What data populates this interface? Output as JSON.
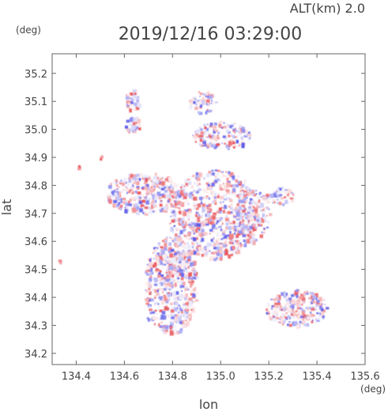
{
  "header": {
    "altitude_label": "ALT(km) 2.0",
    "timestamp": "2019/12/16 03:29:00"
  },
  "chart_data": {
    "type": "heatmap",
    "title": "2019/12/16 03:29:00",
    "xlabel": "lon",
    "ylabel": "lat",
    "x_unit": "(deg)",
    "y_unit": "(deg)",
    "xlim": [
      134.3,
      135.6
    ],
    "ylim": [
      34.16,
      35.27
    ],
    "x_ticks": [
      "134.4",
      "134.6",
      "134.8",
      "135.0",
      "135.2",
      "135.4",
      "135.6"
    ],
    "x_tick_values": [
      134.4,
      134.6,
      134.8,
      135.0,
      135.2,
      135.4,
      135.6
    ],
    "y_ticks": [
      "34.2",
      "34.3",
      "34.4",
      "34.5",
      "34.6",
      "34.7",
      "34.8",
      "34.9",
      "35.0",
      "35.1",
      "35.2"
    ],
    "y_tick_values": [
      34.2,
      34.3,
      34.4,
      34.5,
      34.6,
      34.7,
      34.8,
      34.9,
      35.0,
      35.1,
      35.2
    ],
    "colors": {
      "positive": "#e8555a",
      "negative": "#5a5ae8",
      "frame": "#666666"
    },
    "echo_regions": [
      {
        "lon": [
          134.68,
          134.9
        ],
        "lat": [
          34.27,
          34.62
        ],
        "strength": 0.9
      },
      {
        "lon": [
          134.76,
          134.88
        ],
        "lat": [
          34.5,
          34.57
        ],
        "strength": 1.0
      },
      {
        "lon": [
          134.52,
          134.84
        ],
        "lat": [
          34.7,
          34.85
        ],
        "strength": 0.9
      },
      {
        "lon": [
          134.78,
          135.16
        ],
        "lat": [
          34.54,
          34.86
        ],
        "strength": 0.8
      },
      {
        "lon": [
          135.05,
          135.2
        ],
        "lat": [
          34.6,
          34.8
        ],
        "strength": 0.6
      },
      {
        "lon": [
          134.88,
          135.12
        ],
        "lat": [
          34.93,
          35.03
        ],
        "strength": 0.8
      },
      {
        "lon": [
          134.86,
          134.98
        ],
        "lat": [
          35.06,
          35.14
        ],
        "strength": 0.5
      },
      {
        "lon": [
          134.6,
          134.66
        ],
        "lat": [
          34.99,
          35.05
        ],
        "strength": 0.6
      },
      {
        "lon": [
          134.6,
          134.66
        ],
        "lat": [
          35.06,
          35.15
        ],
        "strength": 0.5
      },
      {
        "lon": [
          135.18,
          135.44
        ],
        "lat": [
          34.3,
          34.43
        ],
        "strength": 1.0
      },
      {
        "lon": [
          135.18,
          135.3
        ],
        "lat": [
          34.73,
          34.8
        ],
        "strength": 0.5
      }
    ],
    "isolated_cells": [
      {
        "lon": 134.414,
        "lat": 34.865,
        "sign": "positive"
      },
      {
        "lon": 134.506,
        "lat": 34.899,
        "sign": "positive"
      },
      {
        "lon": 134.333,
        "lat": 34.528,
        "sign": "positive"
      },
      {
        "lon": 134.702,
        "lat": 34.322,
        "sign": "negative"
      },
      {
        "lon": 135.418,
        "lat": 34.362,
        "sign": "negative"
      },
      {
        "lon": 135.04,
        "lat": 34.95,
        "sign": "positive"
      }
    ]
  }
}
